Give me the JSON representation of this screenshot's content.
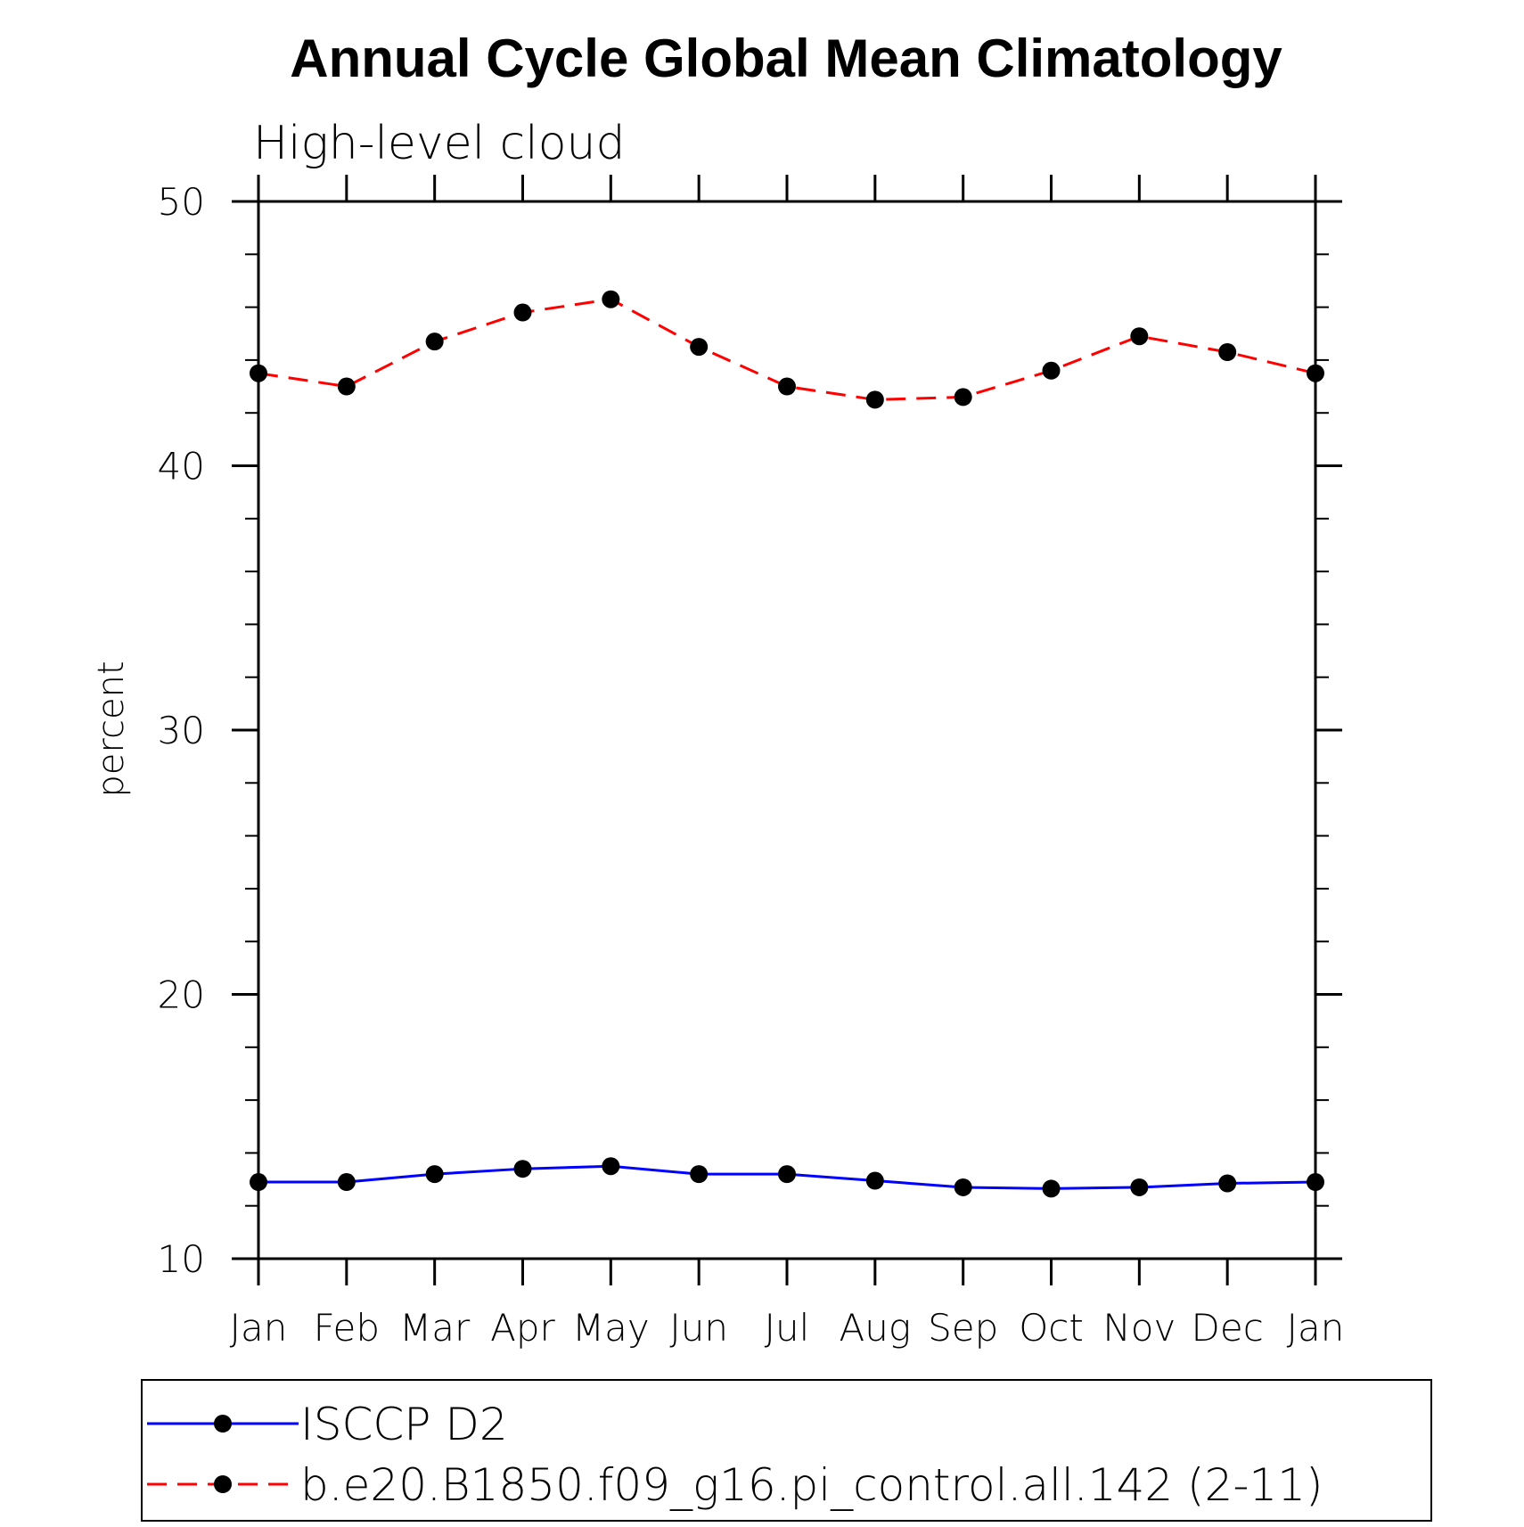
{
  "chart_data": {
    "type": "line",
    "title": "Annual Cycle Global Mean Climatology",
    "subtitle": "High-level cloud",
    "xlabel": "",
    "ylabel": "percent",
    "categories": [
      "Jan",
      "Feb",
      "Mar",
      "Apr",
      "May",
      "Jun",
      "Jul",
      "Aug",
      "Sep",
      "Oct",
      "Nov",
      "Dec",
      "Jan"
    ],
    "ylim": [
      10,
      50
    ],
    "yticks": [
      10,
      20,
      30,
      40,
      50
    ],
    "y_minor_step": 2,
    "grid": false,
    "legend_position": "bottom",
    "series": [
      {
        "name": "ISCCP D2",
        "color": "#0000ff",
        "dash": "solid",
        "values": [
          12.9,
          12.9,
          13.2,
          13.4,
          13.5,
          13.2,
          13.2,
          12.95,
          12.7,
          12.65,
          12.7,
          12.85,
          12.9
        ]
      },
      {
        "name": "b.e20.B1850.f09_g16.pi_control.all.142 (2-11)",
        "color": "#ff0000",
        "dash": "dashed",
        "values": [
          43.5,
          43.0,
          44.7,
          45.8,
          46.3,
          44.5,
          43.0,
          42.5,
          42.6,
          43.6,
          44.9,
          44.3,
          43.5
        ]
      }
    ]
  }
}
